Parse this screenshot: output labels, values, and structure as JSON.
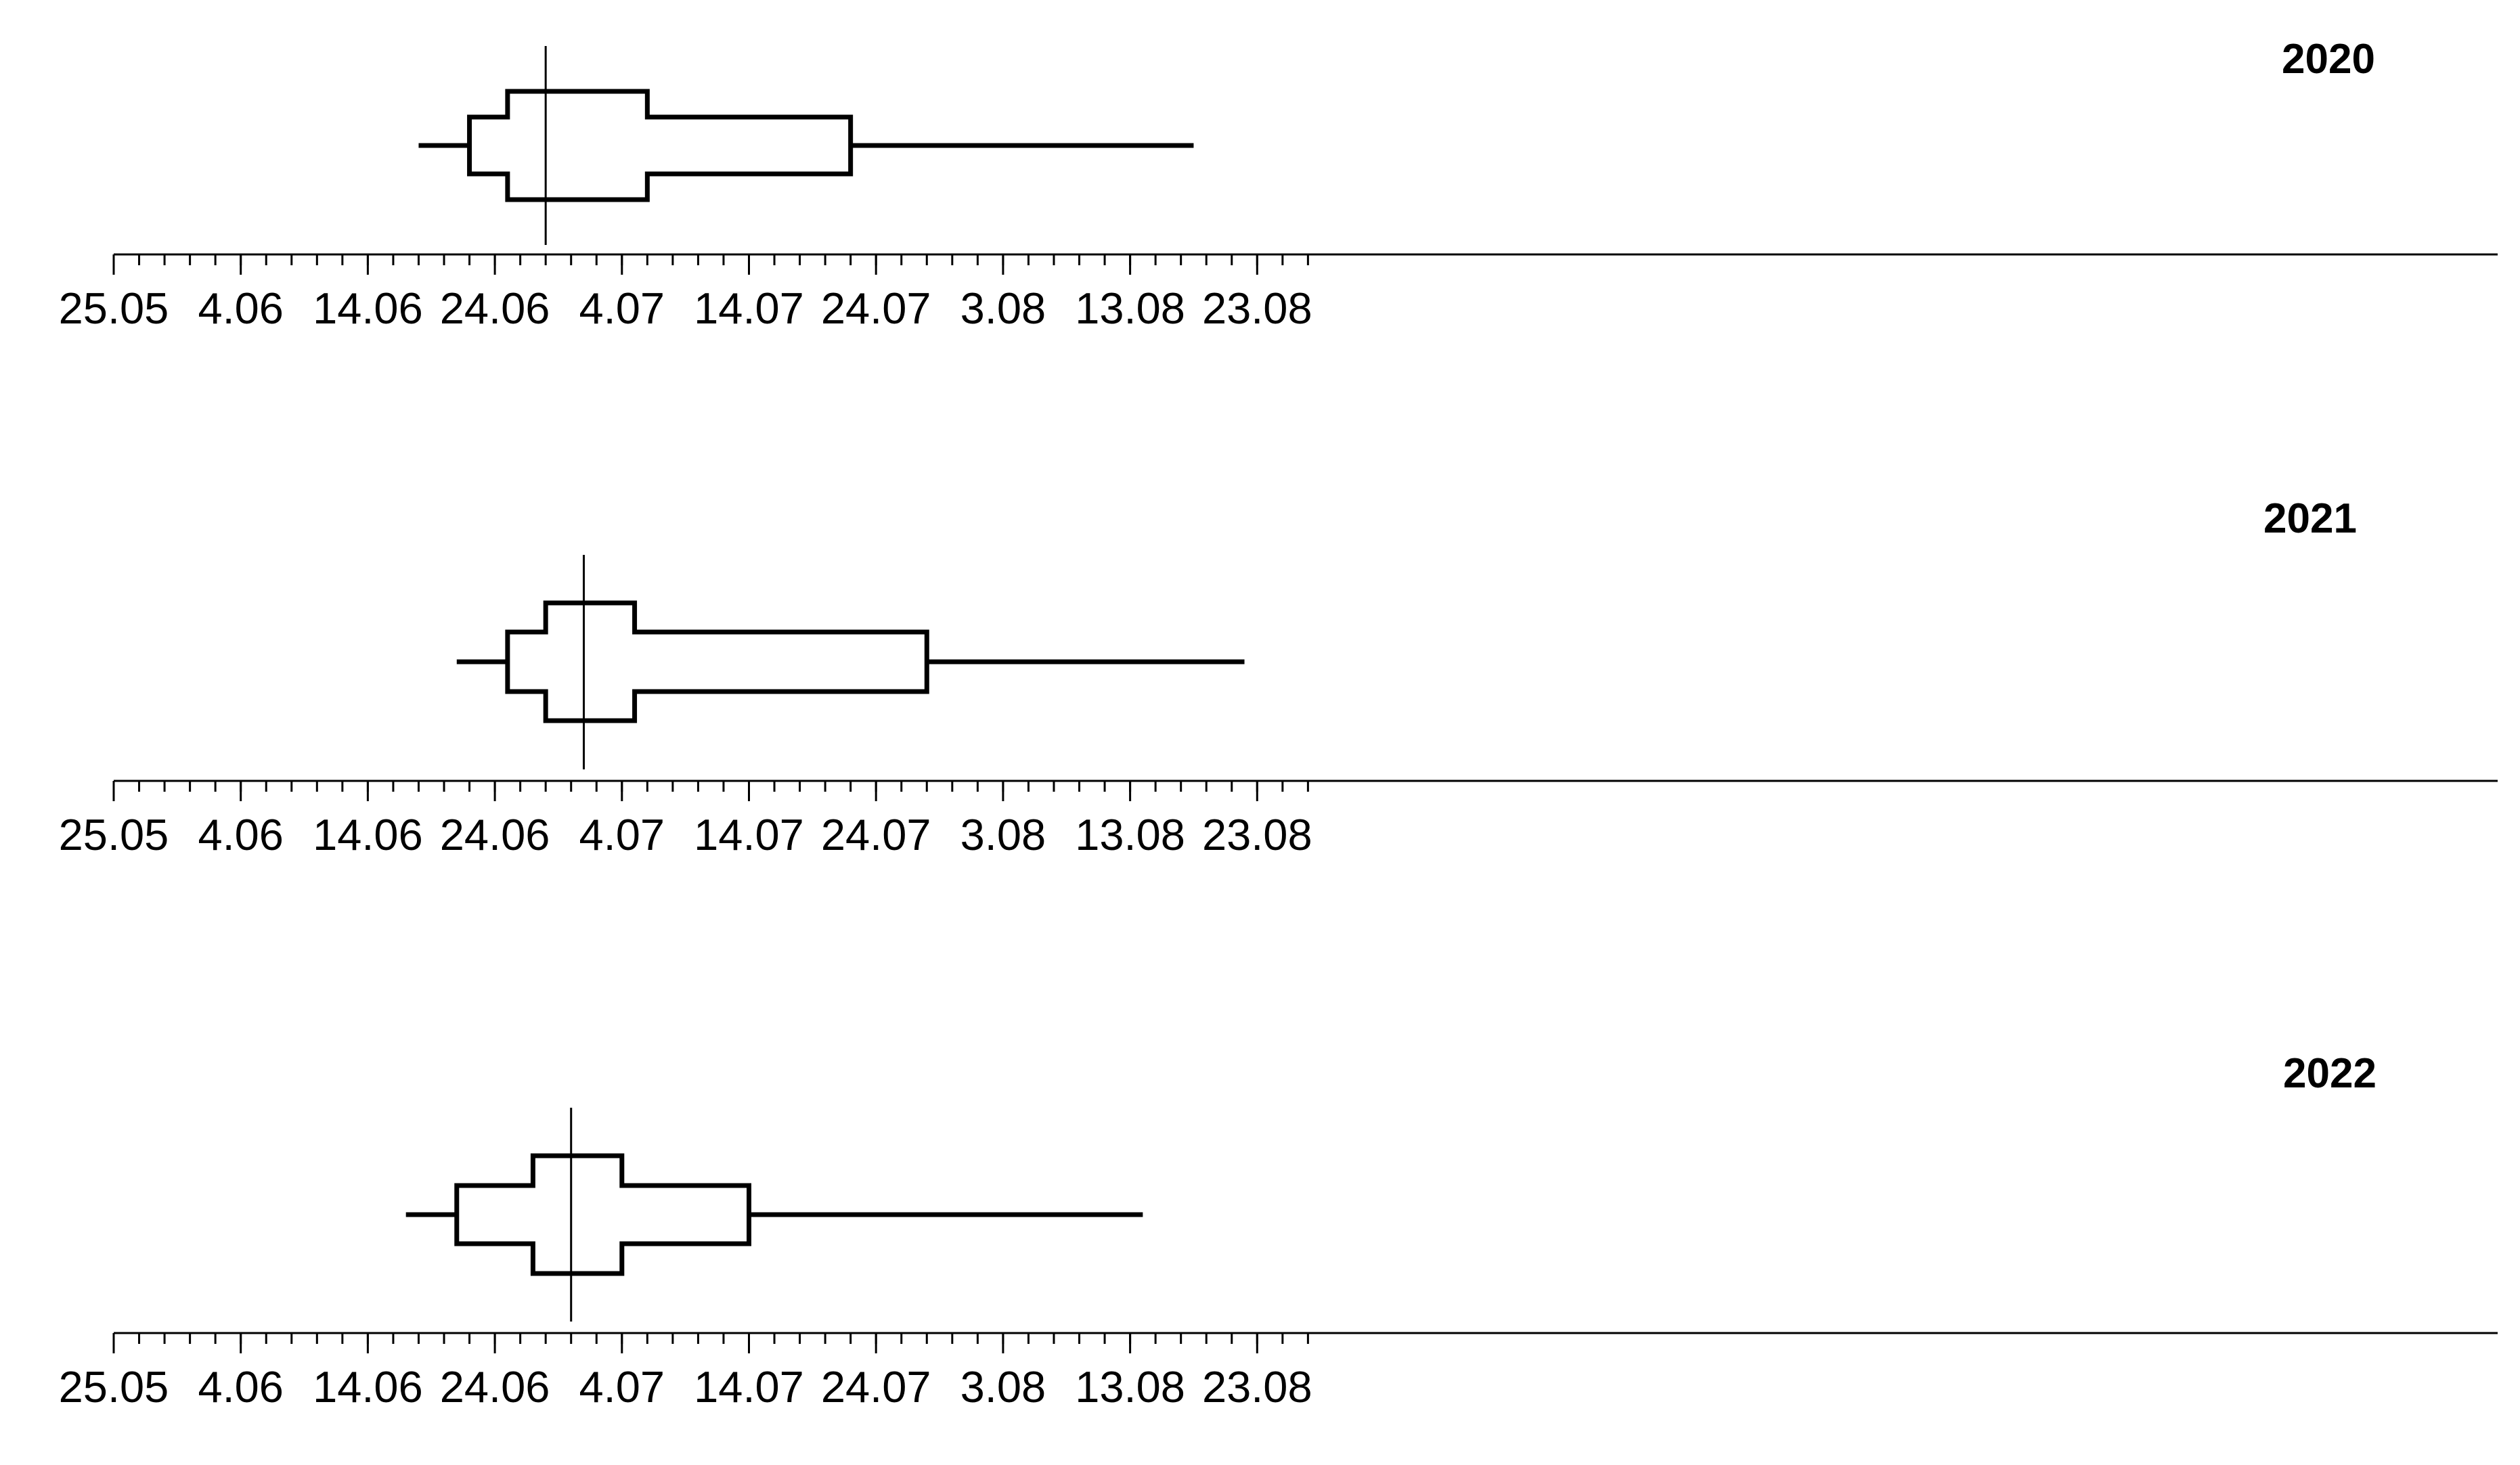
{
  "chart_data": {
    "type": "boxplot",
    "x_axis": {
      "ticks": [
        "25.05",
        "4.06",
        "14.06",
        "24.06",
        "4.07",
        "14.07",
        "24.07",
        "3.08",
        "13.08",
        "23.08"
      ],
      "range": [
        "25.05",
        "27.08"
      ],
      "minor_tick_interval_days": 2
    },
    "panels": [
      {
        "title": "2020",
        "whisker_low": "18.06",
        "outer_box_low": "22.06",
        "inner_box_low": "25.06",
        "median": "28.06",
        "inner_box_high": "6.07",
        "outer_box_high": "22.07",
        "whisker_high": "18.08"
      },
      {
        "title": "2021",
        "whisker_low": "21.06",
        "outer_box_low": "25.06",
        "inner_box_low": "28.06",
        "median": "1.07",
        "inner_box_high": "5.07",
        "outer_box_high": "28.07",
        "whisker_high": "22.08"
      },
      {
        "title": "2022",
        "whisker_low": "17.06",
        "outer_box_low": "21.06",
        "inner_box_low": "27.06",
        "median": "30.06",
        "inner_box_high": "4.07",
        "outer_box_high": "14.07",
        "whisker_high": "14.08"
      }
    ]
  }
}
